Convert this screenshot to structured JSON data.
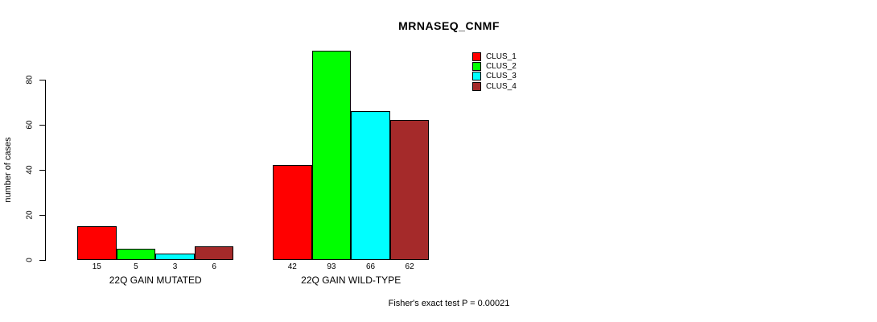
{
  "title": "MRNASEQ_CNMF",
  "footer": "Fisher's exact test P = 0.00021",
  "chart_data": {
    "type": "bar",
    "title": "MRNASEQ_CNMF",
    "xlabel": "",
    "ylabel": "number of cases",
    "categories": [
      "22Q GAIN MUTATED",
      "22Q GAIN WILD-TYPE"
    ],
    "series": [
      {
        "name": "CLUS_1",
        "color": "#ff0000",
        "values": [
          15,
          42
        ]
      },
      {
        "name": "CLUS_2",
        "color": "#00ff00",
        "values": [
          5,
          93
        ]
      },
      {
        "name": "CLUS_3",
        "color": "#00ffff",
        "values": [
          3,
          66
        ]
      },
      {
        "name": "CLUS_4",
        "color": "#a52a2a",
        "values": [
          6,
          62
        ]
      }
    ],
    "bar_value_labels": true,
    "yticks": [
      0,
      20,
      40,
      60,
      80
    ],
    "ylim": [
      0,
      80
    ],
    "grid": false,
    "legend_position": "top-right",
    "annotation": "Fisher's exact test P = 0.00021"
  }
}
